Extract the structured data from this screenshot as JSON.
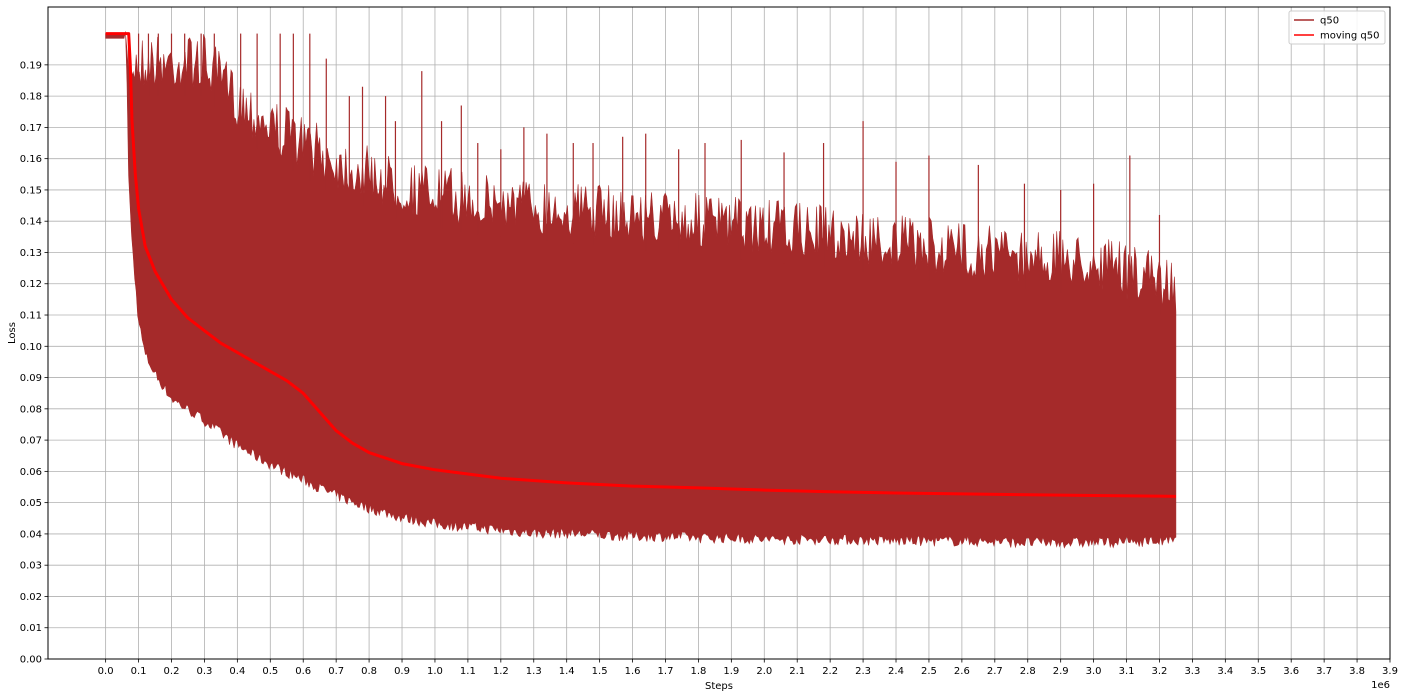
{
  "chart_data": {
    "type": "line",
    "title": "",
    "xlabel": "Steps",
    "ylabel": "Loss",
    "x_offset_label": "1e6",
    "xlim": [
      -0.175,
      3.9
    ],
    "ylim": [
      0.0,
      0.2085
    ],
    "grid": true,
    "legend_position": "top-right",
    "x_ticks": [
      0.0,
      0.1,
      0.2,
      0.3,
      0.4,
      0.5,
      0.6,
      0.7,
      0.8,
      0.9,
      1.0,
      1.1,
      1.2,
      1.3,
      1.4,
      1.5,
      1.6,
      1.7,
      1.8,
      1.9,
      2.0,
      2.1,
      2.2,
      2.3,
      2.4,
      2.5,
      2.6,
      2.7,
      2.8,
      2.9,
      3.0,
      3.1,
      3.2,
      3.3,
      3.4,
      3.5,
      3.6,
      3.7,
      3.8,
      3.9
    ],
    "x_tick_labels": [
      "0.0",
      "0.1",
      "0.2",
      "0.3",
      "0.4",
      "0.5",
      "0.6",
      "0.7",
      "0.8",
      "0.9",
      "1.0",
      "1.1",
      "1.2",
      "1.3",
      "1.4",
      "1.5",
      "1.6",
      "1.7",
      "1.8",
      "1.9",
      "2.0",
      "2.1",
      "2.2",
      "2.3",
      "2.4",
      "2.5",
      "2.6",
      "2.7",
      "2.8",
      "2.9",
      "3.0",
      "3.1",
      "3.2",
      "3.3",
      "3.4",
      "3.5",
      "3.6",
      "3.7",
      "3.8",
      "3.9"
    ],
    "y_ticks": [
      0.0,
      0.01,
      0.02,
      0.03,
      0.04,
      0.05,
      0.06,
      0.07,
      0.08,
      0.09,
      0.1,
      0.11,
      0.12,
      0.13,
      0.14,
      0.15,
      0.16,
      0.17,
      0.18,
      0.19
    ],
    "y_tick_labels": [
      "0.00",
      "0.01",
      "0.02",
      "0.03",
      "0.04",
      "0.05",
      "0.06",
      "0.07",
      "0.08",
      "0.09",
      "0.10",
      "0.11",
      "0.12",
      "0.13",
      "0.14",
      "0.15",
      "0.16",
      "0.17",
      "0.18",
      "0.19"
    ],
    "series": [
      {
        "name": "q50",
        "color": "#a52a2a",
        "style": "noisy-band",
        "x": [
          0.0,
          0.06,
          0.065,
          0.07,
          0.08,
          0.09,
          0.1,
          0.12,
          0.15,
          0.2,
          0.3,
          0.4,
          0.5,
          0.6,
          0.7,
          0.8,
          0.9,
          1.0,
          1.1,
          1.2,
          1.3,
          1.4,
          1.5,
          1.6,
          1.7,
          1.8,
          1.9,
          2.0,
          2.2,
          2.4,
          2.6,
          2.8,
          3.0,
          3.2,
          3.25
        ],
        "upper": [
          0.2,
          0.2,
          0.2,
          0.2,
          0.2,
          0.2,
          0.2,
          0.2,
          0.2,
          0.2,
          0.2,
          0.188,
          0.18,
          0.174,
          0.168,
          0.164,
          0.16,
          0.158,
          0.156,
          0.155,
          0.154,
          0.153,
          0.152,
          0.151,
          0.15,
          0.149,
          0.148,
          0.147,
          0.145,
          0.142,
          0.14,
          0.138,
          0.136,
          0.13,
          0.128
        ],
        "lower": [
          0.2,
          0.2,
          0.185,
          0.152,
          0.133,
          0.12,
          0.108,
          0.097,
          0.091,
          0.083,
          0.076,
          0.068,
          0.062,
          0.057,
          0.052,
          0.048,
          0.045,
          0.043,
          0.042,
          0.041,
          0.04,
          0.04,
          0.0395,
          0.039,
          0.039,
          0.0385,
          0.0385,
          0.038,
          0.038,
          0.0375,
          0.0375,
          0.037,
          0.037,
          0.0375,
          0.0375
        ],
        "spikes_x": [
          0.07,
          0.1,
          0.13,
          0.16,
          0.2,
          0.24,
          0.29,
          0.33,
          0.41,
          0.46,
          0.53,
          0.57,
          0.62,
          0.67,
          0.74,
          0.78,
          0.85,
          0.88,
          0.96,
          1.02,
          1.08,
          1.13,
          1.2,
          1.27,
          1.34,
          1.42,
          1.48,
          1.57,
          1.64,
          1.74,
          1.82,
          1.93,
          2.06,
          2.18,
          2.3,
          2.4,
          2.5,
          2.65,
          2.79,
          2.9,
          3.0,
          3.11,
          3.2
        ],
        "spikes_y": [
          0.2,
          0.2,
          0.2,
          0.2,
          0.2,
          0.2,
          0.2,
          0.2,
          0.2,
          0.2,
          0.2,
          0.2,
          0.2,
          0.192,
          0.18,
          0.183,
          0.18,
          0.172,
          0.188,
          0.172,
          0.177,
          0.165,
          0.163,
          0.17,
          0.168,
          0.165,
          0.165,
          0.167,
          0.168,
          0.163,
          0.165,
          0.166,
          0.162,
          0.165,
          0.172,
          0.159,
          0.161,
          0.158,
          0.152,
          0.15,
          0.152,
          0.161,
          0.142
        ]
      },
      {
        "name": "moving q50",
        "color": "#ff0000",
        "style": "line",
        "x": [
          0.0,
          0.07,
          0.075,
          0.08,
          0.09,
          0.1,
          0.12,
          0.15,
          0.2,
          0.25,
          0.3,
          0.35,
          0.4,
          0.45,
          0.5,
          0.55,
          0.6,
          0.65,
          0.7,
          0.75,
          0.8,
          0.9,
          1.0,
          1.2,
          1.4,
          1.6,
          1.8,
          2.0,
          2.2,
          2.4,
          2.6,
          2.8,
          3.0,
          3.2,
          3.25
        ],
        "y": [
          0.2,
          0.2,
          0.19,
          0.172,
          0.155,
          0.144,
          0.132,
          0.124,
          0.115,
          0.109,
          0.105,
          0.101,
          0.098,
          0.095,
          0.092,
          0.089,
          0.085,
          0.079,
          0.073,
          0.069,
          0.066,
          0.0625,
          0.0605,
          0.0578,
          0.0563,
          0.0553,
          0.0547,
          0.054,
          0.0535,
          0.0531,
          0.0528,
          0.0525,
          0.0523,
          0.0521,
          0.052
        ]
      }
    ]
  }
}
